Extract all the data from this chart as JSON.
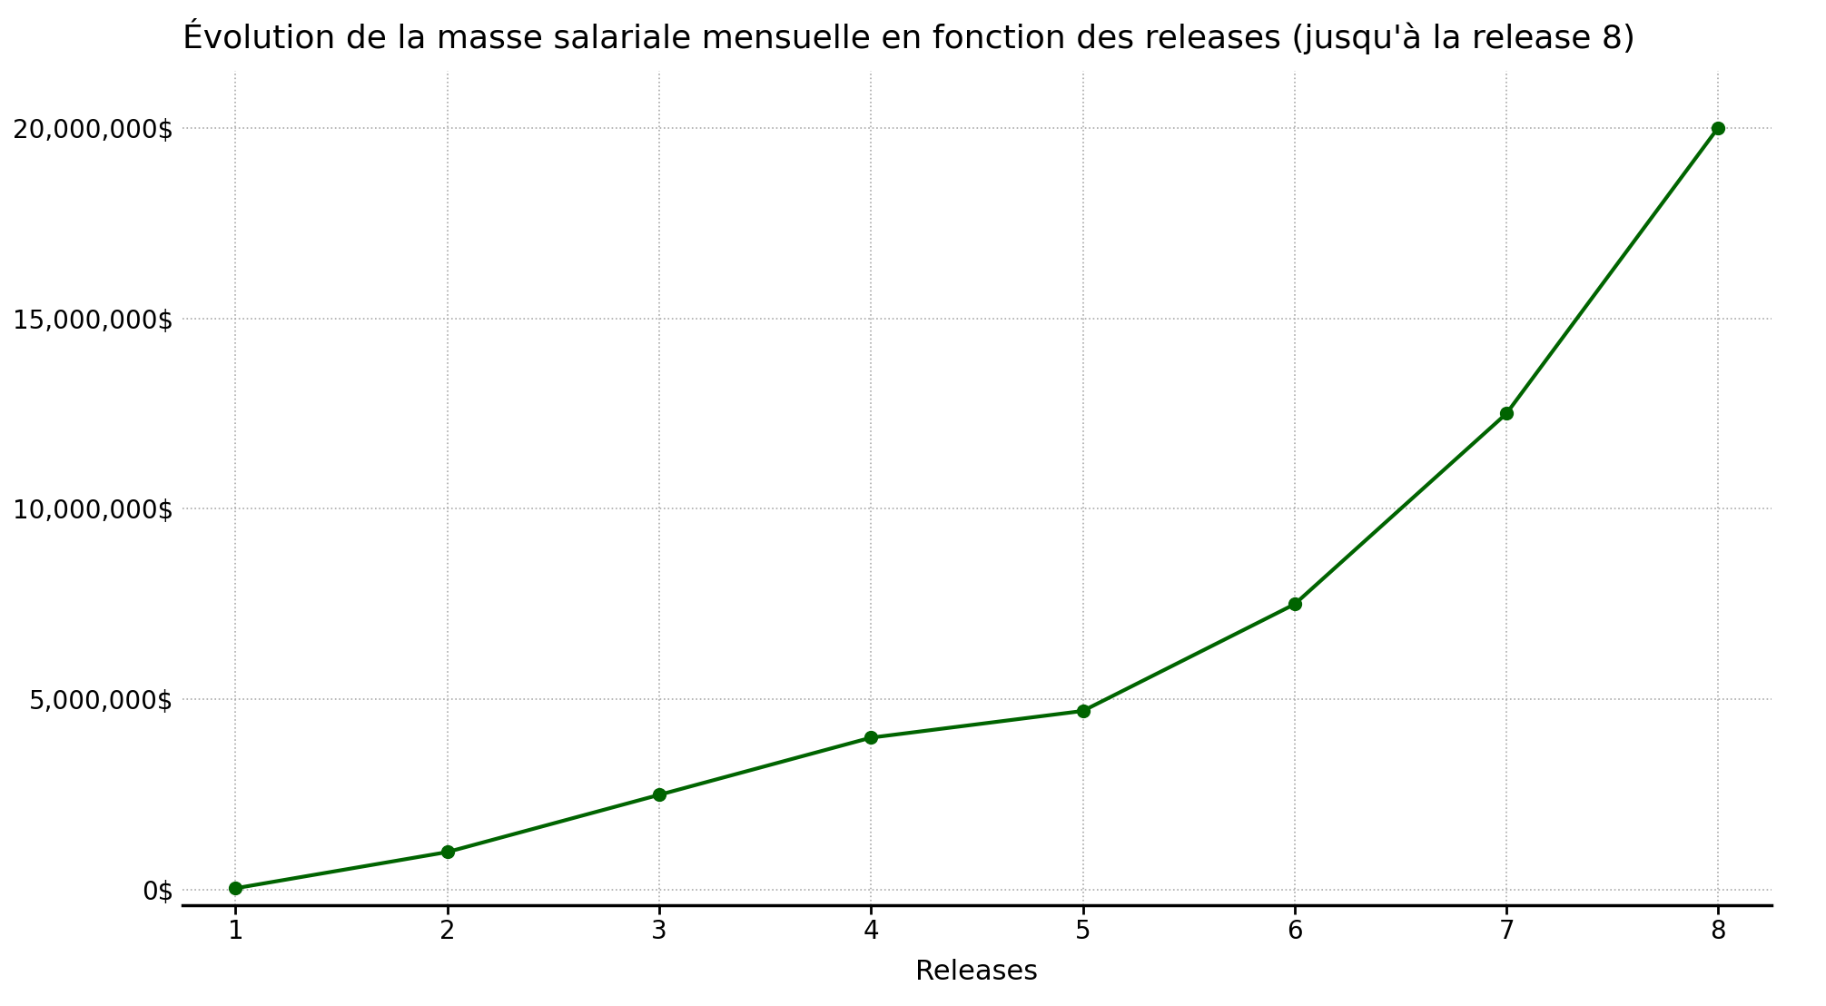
{
  "title": "Évolution de la masse salariale mensuelle en fonction des releases (jusqu'à la release 8)",
  "xlabel": "Releases",
  "x": [
    1,
    2,
    3,
    4,
    5,
    6,
    7,
    8
  ],
  "y": [
    50000,
    1000000,
    2500000,
    4000000,
    4700000,
    7500000,
    12500000,
    20000000
  ],
  "line_color": "#006400",
  "marker_color": "#006400",
  "marker_style": "o",
  "marker_size": 10,
  "line_width": 3.0,
  "background_color": "#ffffff",
  "grid_color": "#aaaaaa",
  "title_fontsize": 26,
  "label_fontsize": 22,
  "tick_fontsize": 20,
  "xlim": [
    0.75,
    8.25
  ],
  "ylim": [
    -400000,
    21500000
  ],
  "yticks": [
    0,
    5000000,
    10000000,
    15000000,
    20000000
  ]
}
